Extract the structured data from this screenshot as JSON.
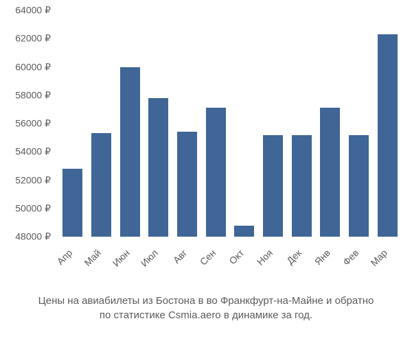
{
  "chart": {
    "type": "bar",
    "categories": [
      "Апр",
      "Май",
      "Июн",
      "Июл",
      "Авг",
      "Сен",
      "Окт",
      "Ноя",
      "Дек",
      "Янв",
      "Фев",
      "Мар"
    ],
    "values": [
      52800,
      55300,
      60000,
      57800,
      55400,
      57100,
      48800,
      55200,
      55200,
      57100,
      55200,
      62300
    ],
    "bar_color": "#3f6696",
    "background_color": "#ffffff",
    "text_color": "#5b5b5b",
    "ymin": 48000,
    "ymax": 64000,
    "ytick_step": 2000,
    "ytick_labels": [
      "48000 ₽",
      "50000 ₽",
      "52000 ₽",
      "54000 ₽",
      "56000 ₽",
      "58000 ₽",
      "60000 ₽",
      "62000 ₽",
      "64000 ₽"
    ],
    "bar_width_ratio": 0.7,
    "tick_fontsize": 14,
    "caption_fontsize": 15,
    "x_tick_rotation": -45
  },
  "caption": {
    "line1": "Цены на авиабилеты из Бостона в во Франкфурт-на-Майне и обратно",
    "line2": "по статистике Csmia.aero в динамике за год."
  }
}
